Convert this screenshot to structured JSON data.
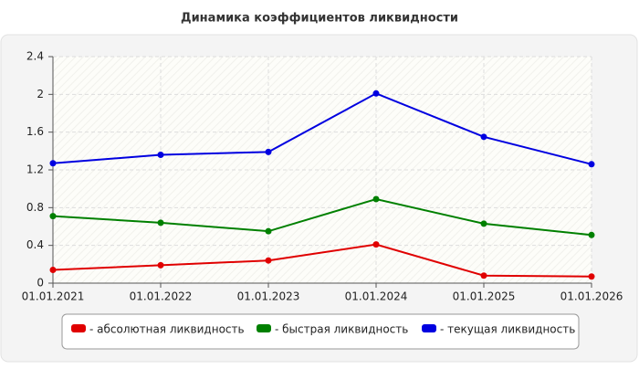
{
  "chart_data": {
    "type": "line",
    "title": "Динамика коэффициентов ликвидности",
    "categories": [
      "01.01.2021",
      "01.01.2022",
      "01.01.2023",
      "01.01.2024",
      "01.01.2025",
      "01.01.2026"
    ],
    "series": [
      {
        "name": "- абсолютная ликвидность",
        "color": "#e00000",
        "values": [
          0.14,
          0.19,
          0.24,
          0.41,
          0.08,
          0.07
        ]
      },
      {
        "name": "- быстрая ликвидность",
        "color": "#008000",
        "values": [
          0.71,
          0.64,
          0.55,
          0.89,
          0.63,
          0.51
        ]
      },
      {
        "name": "- текущая ликвидность",
        "color": "#0000e0",
        "values": [
          1.27,
          1.36,
          1.39,
          2.01,
          1.55,
          1.26
        ]
      }
    ],
    "ylim": [
      0,
      2.4
    ],
    "yticks": [
      0,
      0.4,
      0.8,
      1.2,
      1.6,
      2,
      2.4
    ],
    "grid": true,
    "legend": "bottom"
  }
}
